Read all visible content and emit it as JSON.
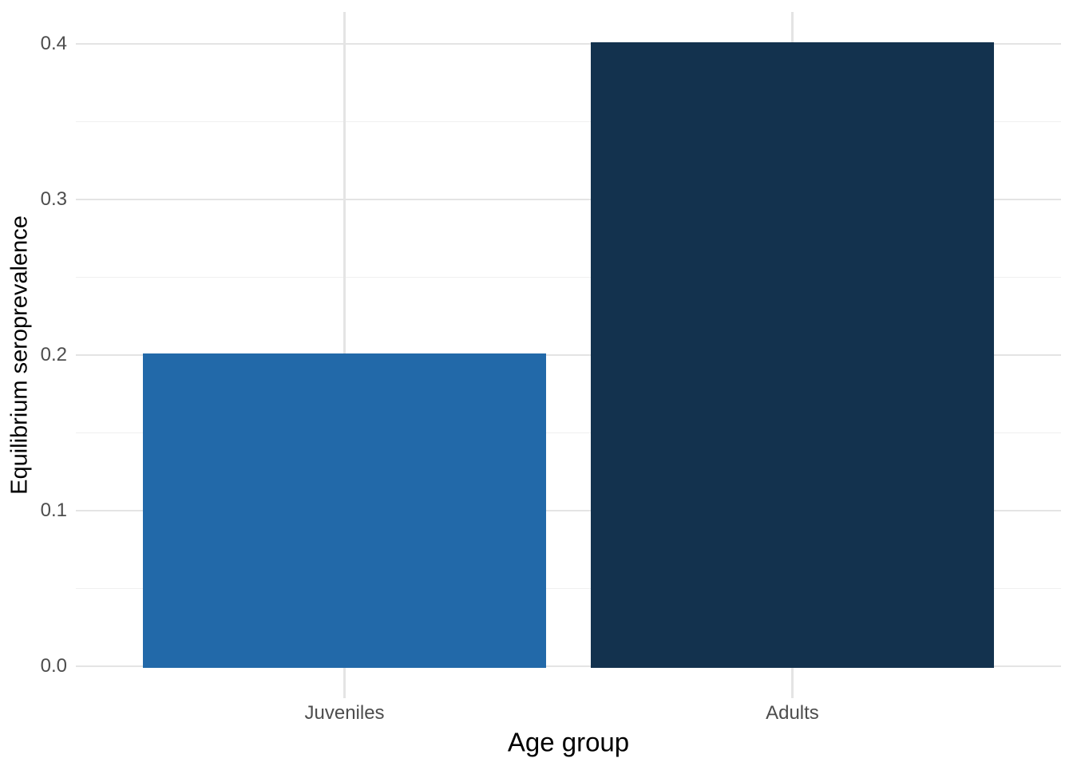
{
  "figure": {
    "background": "#FFFFFF"
  },
  "chart_data": {
    "type": "bar",
    "title": "",
    "xlabel": "Age group",
    "ylabel": "Equilibrium seroprevalence",
    "categories": [
      "Juveniles",
      "Adults"
    ],
    "values": [
      0.201,
      0.401
    ],
    "bar_colors": [
      "#2269A9",
      "#13324E"
    ],
    "ylim": [
      -0.0205,
      0.4205
    ],
    "yticks": [
      {
        "label": "0.0",
        "value": 0.0
      },
      {
        "label": "0.1",
        "value": 0.1
      },
      {
        "label": "0.2",
        "value": 0.2
      },
      {
        "label": "0.3",
        "value": 0.3
      },
      {
        "label": "0.4",
        "value": 0.4
      }
    ],
    "minor_ticks": [
      0.05,
      0.15,
      0.25,
      0.35
    ],
    "grid": true,
    "legend": false,
    "bar_width_fraction": 0.9,
    "colors": {
      "grid_major": "#E4E4E4",
      "grid_minor": "#F0F0F0",
      "tick_label": "#4D4D4D",
      "axis_title": "#000000"
    }
  }
}
